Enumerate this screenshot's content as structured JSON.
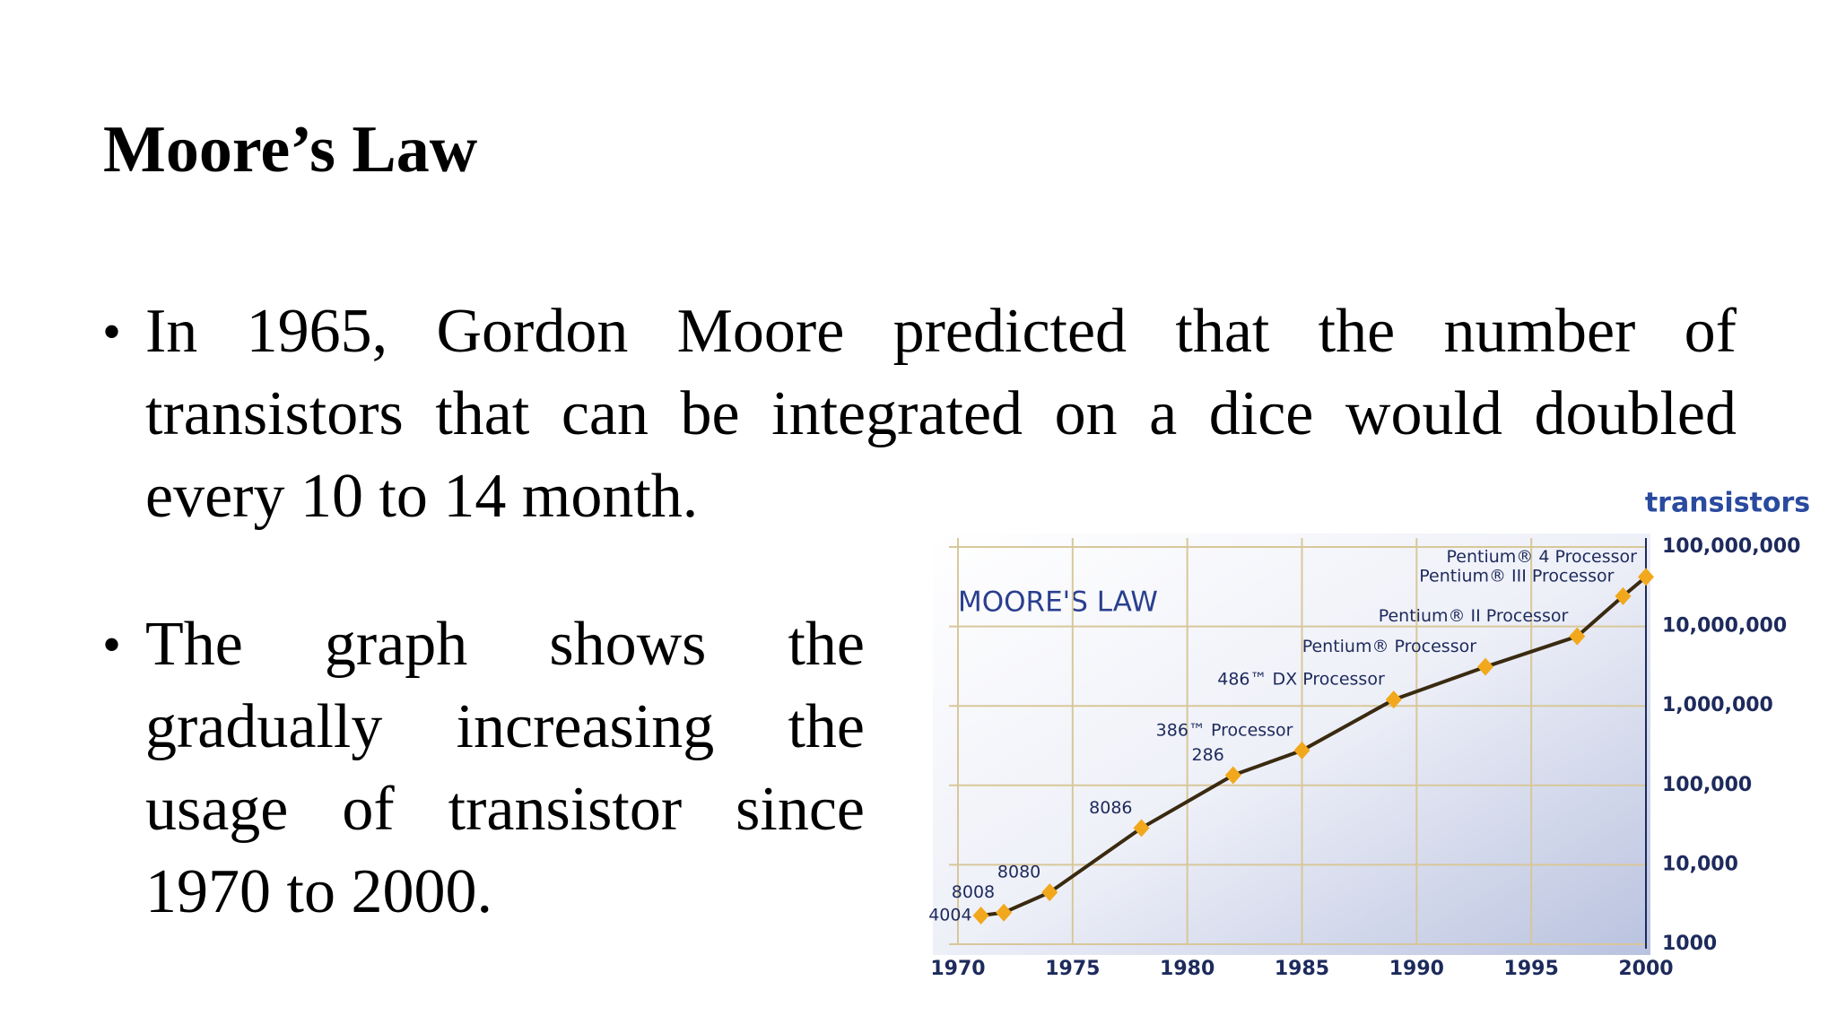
{
  "title": "Moore’s Law",
  "bullets": [
    "In 1965, Gordon Moore predicted that the number of transistors that can be integrated on a dice would doubled every 10 to 14 month.",
    "The graph shows the gradually increasing the usage of transistor since 1970 to 2000."
  ],
  "chart_data": {
    "type": "line",
    "title": "MOORE'S LAW",
    "y_label": "transistors",
    "log_y": true,
    "grid": true,
    "color": "#3a2a10",
    "marker_color": "#f2a81d",
    "x": [
      1971,
      1972,
      1974,
      1978,
      1982,
      1985,
      1989,
      1993,
      1997,
      1999,
      2000
    ],
    "values": [
      2300,
      2500,
      4500,
      29000,
      134000,
      275000,
      1200000,
      3100000,
      7500000,
      24000000,
      42000000
    ],
    "point_labels": [
      "4004",
      "8008",
      "8080",
      "8086",
      "286",
      "386™ Processor",
      "486™ DX Processor",
      "Pentium® Processor",
      "Pentium® II Processor",
      "Pentium® III Processor",
      "Pentium® 4 Processor"
    ],
    "xlim": [
      1970,
      2000
    ],
    "xticks": [
      1970,
      1975,
      1980,
      1985,
      1990,
      1995,
      2000
    ],
    "ylim": [
      1000,
      100000000
    ],
    "yticks": [
      1000,
      {
        "value": 10000,
        "label": "10,000"
      },
      {
        "value": 100000,
        "label": "100,000"
      },
      {
        "value": 1000000,
        "label": "1,000,000"
      },
      {
        "value": 10000000,
        "label": "10,000,000"
      },
      {
        "value": 100000000,
        "label": "100,000,000"
      }
    ]
  }
}
